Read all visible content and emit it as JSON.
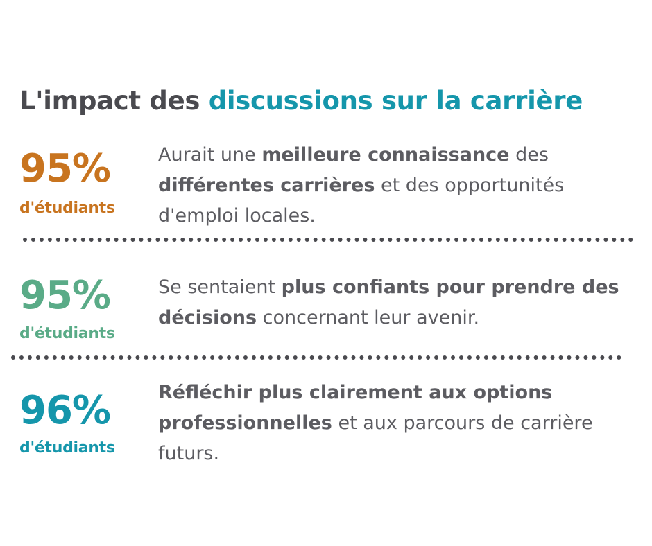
{
  "title": {
    "prefix": "L'impact des",
    "accent": "discussions sur la carrière"
  },
  "colors": {
    "stat_1": "#c8741f",
    "stat_2": "#5aab87",
    "stat_3": "#1596ab",
    "text": "#5c5c61",
    "heading": "#4a4a4f"
  },
  "stats": [
    {
      "percent": "95%",
      "unit": "d'étudiants",
      "desc": {
        "t1": "Aurait une",
        "b1": "meilleure connaissance",
        "t2": "des",
        "b2": "différentes carrières",
        "t3": "et des opportunités d'emploi locales."
      }
    },
    {
      "percent": "95%",
      "unit": "d'étudiants",
      "desc": {
        "t1": "Se sentaient",
        "b1": "plus confiants pour prendre des décisions",
        "t2": "concernant leur avenir."
      }
    },
    {
      "percent": "96%",
      "unit": "d'étudiants",
      "desc": {
        "b1": "Réfléchir plus clairement aux options professionnelles",
        "t1": "et aux parcours de carrière futurs."
      }
    }
  ]
}
